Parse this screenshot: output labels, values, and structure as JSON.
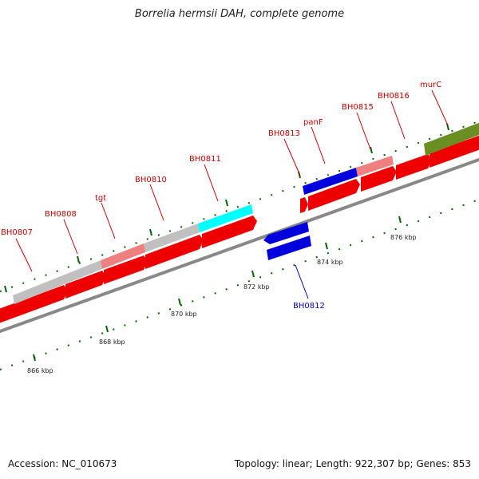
{
  "title": "Borrelia hermsii DAH, complete genome",
  "footer": {
    "accession": "Accession: NC_010673",
    "summary": "Topology: linear; Length: 922,307 bp; Genes: 853"
  },
  "colors": {
    "cds": "#ff0000",
    "cds_light": "#f08080",
    "rna": "#c0c0c0",
    "cyan": "#00ffff",
    "reverse": "#0000dd",
    "olive": "#6b8e23",
    "backbone": "#888888",
    "tick": "#006400",
    "label_fwd": "#cc0000",
    "label_rev": "#0000cc"
  },
  "kbp_labels": [
    "866 kbp",
    "868 kbp",
    "870 kbp",
    "872 kbp",
    "874 kbp",
    "876 kbp"
  ],
  "gene_labels": [
    "BH0807",
    "BH0808",
    "tgt",
    "BH0810",
    "BH0811",
    "BH0813",
    "panF",
    "BH0815",
    "BH0816",
    "murC",
    "BH0812"
  ]
}
